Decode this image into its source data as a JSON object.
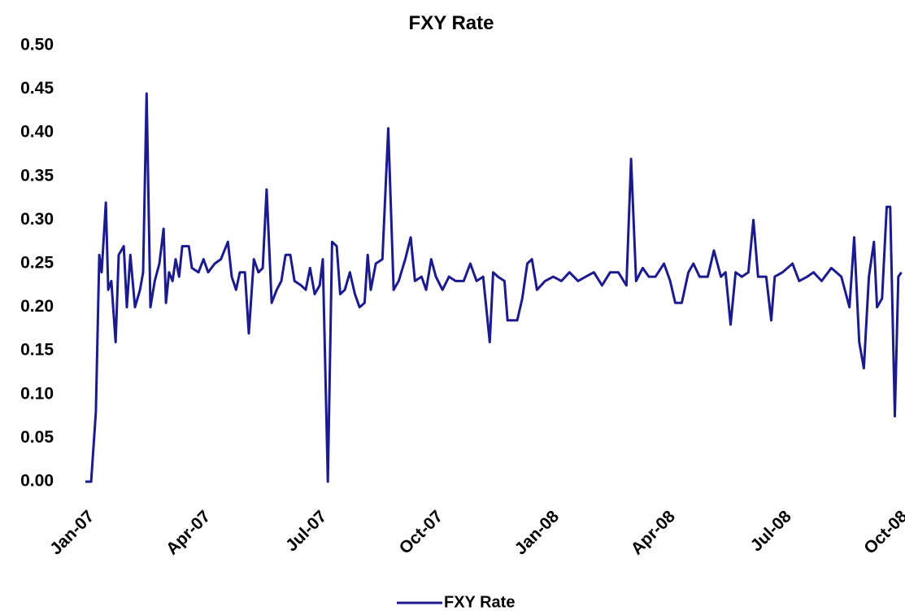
{
  "chart_data": {
    "type": "line",
    "title": "FXY Rate",
    "x": [
      0,
      0.15,
      0.27,
      0.36,
      0.42,
      0.53,
      0.59,
      0.67,
      0.78,
      0.86,
      0.99,
      1.07,
      1.16,
      1.28,
      1.41,
      1.49,
      1.58,
      1.68,
      1.79,
      1.91,
      2.02,
      2.08,
      2.16,
      2.25,
      2.33,
      2.42,
      2.5,
      2.67,
      2.75,
      2.92,
      3.05,
      3.17,
      3.34,
      3.5,
      3.68,
      3.78,
      3.89,
      3.99,
      4.12,
      4.22,
      4.35,
      4.47,
      4.58,
      4.68,
      4.81,
      4.94,
      5.06,
      5.17,
      5.29,
      5.4,
      5.57,
      5.69,
      5.8,
      5.92,
      6.05,
      6.13,
      6.26,
      6.37,
      6.49,
      6.58,
      6.7,
      6.83,
      6.96,
      7.08,
      7.21,
      7.29,
      7.37,
      7.5,
      7.67,
      7.82,
      7.96,
      8.09,
      8.26,
      8.4,
      8.51,
      8.68,
      8.8,
      8.93,
      9.05,
      9.22,
      9.39,
      9.56,
      9.77,
      9.94,
      10.1,
      10.27,
      10.44,
      10.53,
      10.65,
      10.82,
      10.9,
      11.15,
      11.28,
      11.41,
      11.53,
      11.66,
      11.87,
      12.08,
      12.29,
      12.5,
      12.72,
      12.92,
      13.13,
      13.34,
      13.55,
      13.76,
      13.97,
      14.09,
      14.22,
      14.39,
      14.55,
      14.72,
      14.94,
      15.1,
      15.23,
      15.4,
      15.57,
      15.7,
      15.86,
      16.07,
      16.23,
      16.41,
      16.53,
      16.66,
      16.79,
      16.95,
      17.12,
      17.25,
      17.37,
      17.58,
      17.71,
      17.8,
      18.0,
      18.26,
      18.43,
      18.64,
      18.8,
      19.01,
      19.26,
      19.52,
      19.73,
      19.85,
      19.98,
      20.1,
      20.23,
      20.36,
      20.44,
      20.57,
      20.69,
      20.78,
      20.9,
      20.99,
      21.07
    ],
    "series": [
      {
        "name": "FXY Rate",
        "color": "#1b1b8f",
        "values": [
          0,
          0,
          0.08,
          0.26,
          0.24,
          0.32,
          0.22,
          0.23,
          0.16,
          0.26,
          0.27,
          0.2,
          0.26,
          0.2,
          0.22,
          0.24,
          0.445,
          0.2,
          0.23,
          0.25,
          0.29,
          0.205,
          0.24,
          0.23,
          0.255,
          0.235,
          0.27,
          0.27,
          0.245,
          0.24,
          0.255,
          0.24,
          0.25,
          0.255,
          0.275,
          0.235,
          0.22,
          0.24,
          0.24,
          0.17,
          0.255,
          0.24,
          0.245,
          0.335,
          0.205,
          0.22,
          0.23,
          0.26,
          0.26,
          0.23,
          0.225,
          0.22,
          0.245,
          0.215,
          0.225,
          0.255,
          0,
          0.275,
          0.27,
          0.215,
          0.22,
          0.24,
          0.215,
          0.2,
          0.205,
          0.26,
          0.22,
          0.25,
          0.255,
          0.405,
          0.22,
          0.23,
          0.255,
          0.28,
          0.23,
          0.235,
          0.22,
          0.255,
          0.235,
          0.22,
          0.235,
          0.23,
          0.23,
          0.25,
          0.23,
          0.235,
          0.16,
          0.24,
          0.235,
          0.23,
          0.185,
          0.185,
          0.21,
          0.25,
          0.255,
          0.22,
          0.23,
          0.235,
          0.23,
          0.24,
          0.23,
          0.235,
          0.24,
          0.225,
          0.24,
          0.24,
          0.225,
          0.37,
          0.23,
          0.245,
          0.235,
          0.235,
          0.25,
          0.23,
          0.205,
          0.205,
          0.24,
          0.25,
          0.235,
          0.235,
          0.265,
          0.235,
          0.24,
          0.18,
          0.24,
          0.235,
          0.24,
          0.3,
          0.235,
          0.235,
          0.185,
          0.235,
          0.24,
          0.25,
          0.23,
          0.235,
          0.24,
          0.23,
          0.245,
          0.235,
          0.2,
          0.28,
          0.16,
          0.13,
          0.235,
          0.275,
          0.2,
          0.21,
          0.315,
          0.315,
          0.075,
          0.235,
          0.24
        ]
      }
    ],
    "xlim": [
      0,
      21.1
    ],
    "xticks": [
      {
        "value": 0,
        "label": "Jan-07"
      },
      {
        "value": 3,
        "label": "Apr-07"
      },
      {
        "value": 6,
        "label": "Jul-07"
      },
      {
        "value": 9,
        "label": "Oct-07"
      },
      {
        "value": 12,
        "label": "Jan-08"
      },
      {
        "value": 15,
        "label": "Apr-08"
      },
      {
        "value": 18,
        "label": "Jul-08"
      },
      {
        "value": 21,
        "label": "Oct-08"
      }
    ],
    "ylim": [
      0,
      0.5
    ],
    "yticks": [
      {
        "value": 0,
        "label": "0.00"
      },
      {
        "value": 0.05,
        "label": "0.05"
      },
      {
        "value": 0.1,
        "label": "0.10"
      },
      {
        "value": 0.15,
        "label": "0.15"
      },
      {
        "value": 0.2,
        "label": "0.20"
      },
      {
        "value": 0.25,
        "label": "0.25"
      },
      {
        "value": 0.3,
        "label": "0.30"
      },
      {
        "value": 0.35,
        "label": "0.35"
      },
      {
        "value": 0.4,
        "label": "0.40"
      },
      {
        "value": 0.45,
        "label": "0.45"
      },
      {
        "value": 0.5,
        "label": "0.50"
      }
    ],
    "grid": false,
    "legend": "bottom"
  }
}
